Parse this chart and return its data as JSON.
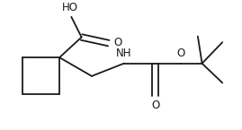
{
  "bg_color": "#ffffff",
  "line_color": "#1a1a1a",
  "text_color": "#1a1a1a",
  "bond_lw": 1.3,
  "font_size": 8.5,
  "figsize": [
    2.69,
    1.45
  ],
  "dpi": 100,
  "xlim": [
    0,
    269
  ],
  "ylim": [
    0,
    145
  ]
}
